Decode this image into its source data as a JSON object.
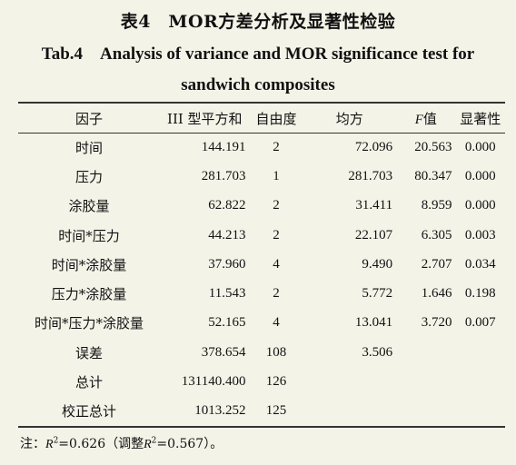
{
  "caption": {
    "cn": "表4　MOR方差分析及显著性检验",
    "en_line1": "Tab.4　Analysis of variance and MOR significance test for",
    "en_line2": "sandwich composites"
  },
  "table": {
    "headers": {
      "factor": "因子",
      "ss": "III 型平方和",
      "df": "自由度",
      "ms": "均方",
      "f_symbol": "F",
      "f_suffix": "值",
      "sig": "显著性"
    },
    "rows": [
      {
        "factor": "时间",
        "ss": "144.191",
        "df": "2",
        "ms": "72.096",
        "f": "20.563",
        "sig": "0.000"
      },
      {
        "factor": "压力",
        "ss": "281.703",
        "df": "1",
        "ms": "281.703",
        "f": "80.347",
        "sig": "0.000"
      },
      {
        "factor": "涂胶量",
        "ss": "62.822",
        "df": "2",
        "ms": "31.411",
        "f": "8.959",
        "sig": "0.000"
      },
      {
        "factor": "时间*压力",
        "ss": "44.213",
        "df": "2",
        "ms": "22.107",
        "f": "6.305",
        "sig": "0.003"
      },
      {
        "factor": "时间*涂胶量",
        "ss": "37.960",
        "df": "4",
        "ms": "9.490",
        "f": "2.707",
        "sig": "0.034"
      },
      {
        "factor": "压力*涂胶量",
        "ss": "11.543",
        "df": "2",
        "ms": "5.772",
        "f": "1.646",
        "sig": "0.198"
      },
      {
        "factor": "时间*压力*涂胶量",
        "ss": "52.165",
        "df": "4",
        "ms": "13.041",
        "f": "3.720",
        "sig": "0.007"
      },
      {
        "factor": "误差",
        "ss": "378.654",
        "df": "108",
        "ms": "3.506",
        "f": "",
        "sig": ""
      },
      {
        "factor": "总计",
        "ss": "131140.400",
        "df": "126",
        "ms": "",
        "f": "",
        "sig": ""
      },
      {
        "factor": "校正总计",
        "ss": "1013.252",
        "df": "125",
        "ms": "",
        "f": "",
        "sig": ""
      }
    ]
  },
  "note": {
    "prefix": "注：",
    "r_symbol": "R",
    "exponent": "2",
    "value_text": "=0.626（调整",
    "adj_r_symbol": "R",
    "adj_exponent": "2",
    "adj_value_text": "=0.567）。"
  }
}
